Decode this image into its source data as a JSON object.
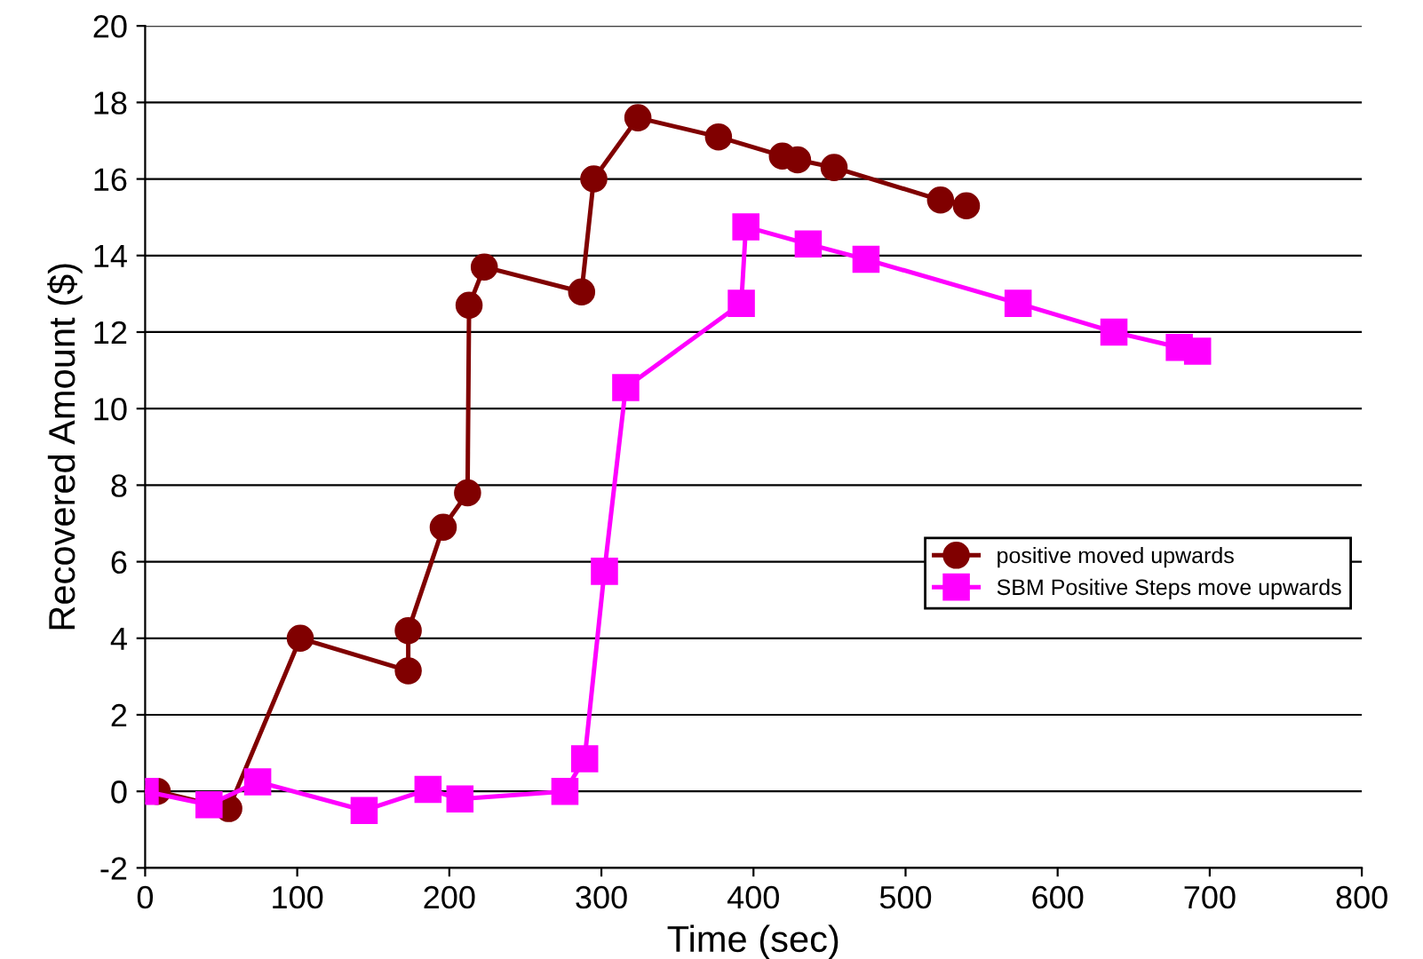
{
  "chart_data": {
    "type": "line",
    "xlabel": "Time (sec)",
    "ylabel": "Recovered Amount ($)",
    "xlim": [
      0,
      800
    ],
    "xticks": [
      0,
      100,
      200,
      300,
      400,
      500,
      600,
      700,
      800
    ],
    "ylim": [
      -2,
      20
    ],
    "yticks": [
      -2,
      0,
      2,
      4,
      6,
      8,
      10,
      12,
      14,
      16,
      18,
      20
    ],
    "grid": "y",
    "legend": "right",
    "series": [
      {
        "name": "positive moved upwards",
        "color": "#800000",
        "marker": "circle",
        "x": [
          8,
          55,
          102,
          173,
          173,
          196,
          212,
          213,
          223,
          287,
          295,
          324,
          377,
          419,
          429,
          453,
          523,
          540
        ],
        "values": [
          0,
          -0.45,
          4.0,
          3.15,
          4.2,
          6.9,
          7.8,
          12.7,
          13.7,
          13.05,
          16.0,
          17.6,
          17.1,
          16.6,
          16.5,
          16.3,
          15.45,
          15.3
        ]
      },
      {
        "name": "SBM Positive Steps move upwards",
        "color": "#ff00ff",
        "marker": "square",
        "x": [
          0,
          42,
          74,
          144,
          186,
          207,
          276,
          289,
          302,
          316,
          392,
          395,
          436,
          474,
          574,
          637,
          680,
          692
        ],
        "values": [
          0,
          -0.35,
          0.25,
          -0.5,
          0.05,
          -0.2,
          0.0,
          0.85,
          5.75,
          10.55,
          12.75,
          14.75,
          14.3,
          13.9,
          12.75,
          12.0,
          11.6,
          11.5
        ]
      }
    ]
  }
}
